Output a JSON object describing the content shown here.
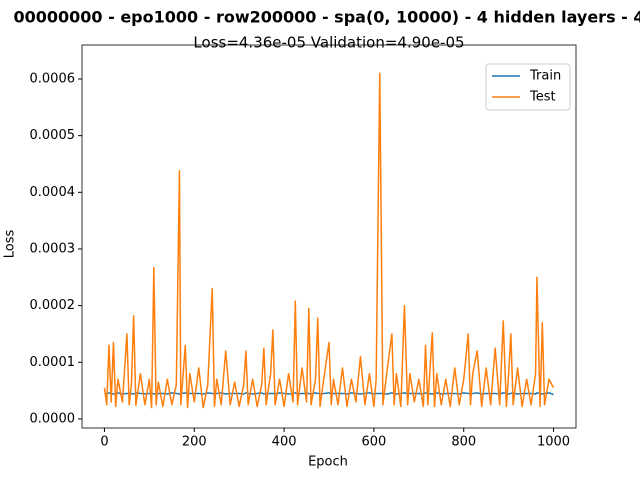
{
  "chart_data": {
    "type": "line",
    "title": "00000000 - epo1000 - row200000 - spa(0, 10000) - 4 hidden layers - 4",
    "subtitle": "Loss=4.36e-05 Validation=4.90e-05",
    "x_label": "Epoch",
    "y_label": "Loss",
    "legend": "upper right",
    "xlim": [
      -50,
      1050
    ],
    "xticks": [
      0,
      200,
      400,
      600,
      800,
      1000
    ],
    "ylim": [
      -1.6e-05,
      0.00066
    ],
    "yticks": [
      {
        "value": 0,
        "label": "0.0000"
      },
      {
        "value": 0.0001,
        "label": "0.0001"
      },
      {
        "value": 0.0002,
        "label": "0.0002"
      },
      {
        "value": 0.0003,
        "label": "0.0003"
      },
      {
        "value": 0.0004,
        "label": "0.0004"
      },
      {
        "value": 0.0005,
        "label": "0.0005"
      },
      {
        "value": 0.0006,
        "label": "0.0006"
      }
    ],
    "x": [
      0,
      5,
      10,
      15,
      20,
      25,
      30,
      40,
      50,
      55,
      60,
      65,
      70,
      80,
      90,
      100,
      105,
      110,
      115,
      120,
      130,
      140,
      150,
      160,
      167,
      170,
      180,
      185,
      190,
      200,
      210,
      220,
      230,
      240,
      245,
      250,
      260,
      270,
      280,
      290,
      300,
      310,
      315,
      320,
      330,
      340,
      350,
      355,
      360,
      370,
      375,
      380,
      390,
      400,
      410,
      420,
      425,
      430,
      440,
      450,
      455,
      460,
      470,
      475,
      480,
      490,
      500,
      505,
      510,
      520,
      530,
      540,
      550,
      560,
      570,
      580,
      590,
      600,
      605,
      613,
      620,
      630,
      640,
      645,
      650,
      660,
      668,
      675,
      680,
      690,
      700,
      710,
      715,
      720,
      730,
      735,
      740,
      750,
      760,
      770,
      780,
      790,
      800,
      810,
      815,
      820,
      830,
      840,
      850,
      860,
      870,
      880,
      888,
      895,
      900,
      905,
      910,
      920,
      930,
      940,
      950,
      960,
      963,
      970,
      975,
      980,
      990,
      1000
    ],
    "series": [
      {
        "name": "Train",
        "color": "#1f77b4",
        "values": [
          4.5e-05,
          4.4e-05,
          4.6e-05,
          4.5e-05,
          4.4e-05,
          4.5e-05,
          4.6e-05,
          4.4e-05,
          4.5e-05,
          4.5e-05,
          4.5e-05,
          4.4e-05,
          4.6e-05,
          4.5e-05,
          4.4e-05,
          4.5e-05,
          4.6e-05,
          4.4e-05,
          4.5e-05,
          4.5e-05,
          4.5e-05,
          4.4e-05,
          4.6e-05,
          4.5e-05,
          4.4e-05,
          4.5e-05,
          4.6e-05,
          4.4e-05,
          4.5e-05,
          4.5e-05,
          4.5e-05,
          4.4e-05,
          4.6e-05,
          4.5e-05,
          4.4e-05,
          4.5e-05,
          4.6e-05,
          4.4e-05,
          4.5e-05,
          4.5e-05,
          4.5e-05,
          4.4e-05,
          4.6e-05,
          4.5e-05,
          4.4e-05,
          4.5e-05,
          4.6e-05,
          4.4e-05,
          4.5e-05,
          4.5e-05,
          4.5e-05,
          4.4e-05,
          4.6e-05,
          4.5e-05,
          4.4e-05,
          4.5e-05,
          4.6e-05,
          4.4e-05,
          4.5e-05,
          4.5e-05,
          4.5e-05,
          4.4e-05,
          4.6e-05,
          4.5e-05,
          4.4e-05,
          4.5e-05,
          4.6e-05,
          4.4e-05,
          4.5e-05,
          4.5e-05,
          4.5e-05,
          4.4e-05,
          4.6e-05,
          4.5e-05,
          4.4e-05,
          4.5e-05,
          4.6e-05,
          4.4e-05,
          4.5e-05,
          4.5e-05,
          4.5e-05,
          4.4e-05,
          4.6e-05,
          4.5e-05,
          4.4e-05,
          4.5e-05,
          4.6e-05,
          4.4e-05,
          4.5e-05,
          4.5e-05,
          4.5e-05,
          4.4e-05,
          4.6e-05,
          4.5e-05,
          4.4e-05,
          4.5e-05,
          4.6e-05,
          4.4e-05,
          4.5e-05,
          4.5e-05,
          4.5e-05,
          4.4e-05,
          4.6e-05,
          4.5e-05,
          4.4e-05,
          4.5e-05,
          4.6e-05,
          4.4e-05,
          4.5e-05,
          4.5e-05,
          4.5e-05,
          4.4e-05,
          4.6e-05,
          4.5e-05,
          4.4e-05,
          4.5e-05,
          4.6e-05,
          4.4e-05,
          4.5e-05,
          4.5e-05,
          4.5e-05,
          4.4e-05,
          4.6e-05,
          4.5e-05,
          4.4e-05,
          4.5e-05,
          4.6e-05,
          4.3e-05
        ]
      },
      {
        "name": "Test",
        "color": "#ff7f0e",
        "values": [
          5.5e-05,
          2.5e-05,
          0.00013,
          3e-05,
          0.000135,
          2.2e-05,
          7e-05,
          3e-05,
          0.00015,
          2.5e-05,
          6e-05,
          0.000182,
          2.4e-05,
          8e-05,
          2.5e-05,
          7e-05,
          2e-05,
          0.000267,
          2.5e-05,
          6.5e-05,
          2.2e-05,
          7e-05,
          2.5e-05,
          6e-05,
          0.000438,
          2.5e-05,
          0.00013,
          2e-05,
          8e-05,
          3e-05,
          9e-05,
          2e-05,
          6e-05,
          0.00023,
          2.2e-05,
          7e-05,
          2.5e-05,
          0.00012,
          2.5e-05,
          6.5e-05,
          2.2e-05,
          6e-05,
          0.00012,
          2.5e-05,
          7e-05,
          2.2e-05,
          6e-05,
          0.000125,
          2.5e-05,
          8e-05,
          0.000157,
          2.5e-05,
          7e-05,
          2.2e-05,
          8e-05,
          3e-05,
          0.000208,
          2.5e-05,
          9e-05,
          3e-05,
          0.000195,
          2.5e-05,
          7e-05,
          0.000178,
          2.2e-05,
          8e-05,
          0.000135,
          2.5e-05,
          7e-05,
          2.5e-05,
          9e-05,
          2.2e-05,
          7e-05,
          3e-05,
          0.00011,
          2.5e-05,
          8e-05,
          2.2e-05,
          7e-05,
          0.00061,
          2.5e-05,
          9e-05,
          0.00015,
          2.5e-05,
          8e-05,
          2.2e-05,
          0.0002,
          2.5e-05,
          8e-05,
          3e-05,
          7e-05,
          2.2e-05,
          0.00013,
          2.5e-05,
          0.000152,
          2.2e-05,
          8e-05,
          2.5e-05,
          7e-05,
          2.2e-05,
          9e-05,
          2.5e-05,
          7e-05,
          0.00015,
          2.5e-05,
          8e-05,
          0.00012,
          2.2e-05,
          9e-05,
          2.5e-05,
          0.000125,
          2.5e-05,
          0.000173,
          2.2e-05,
          8e-05,
          0.00015,
          2.5e-05,
          9e-05,
          2.2e-05,
          7e-05,
          2.5e-05,
          8e-05,
          0.00025,
          2.2e-05,
          0.00017,
          2.5e-05,
          7e-05,
          5.5e-05
        ]
      }
    ]
  }
}
